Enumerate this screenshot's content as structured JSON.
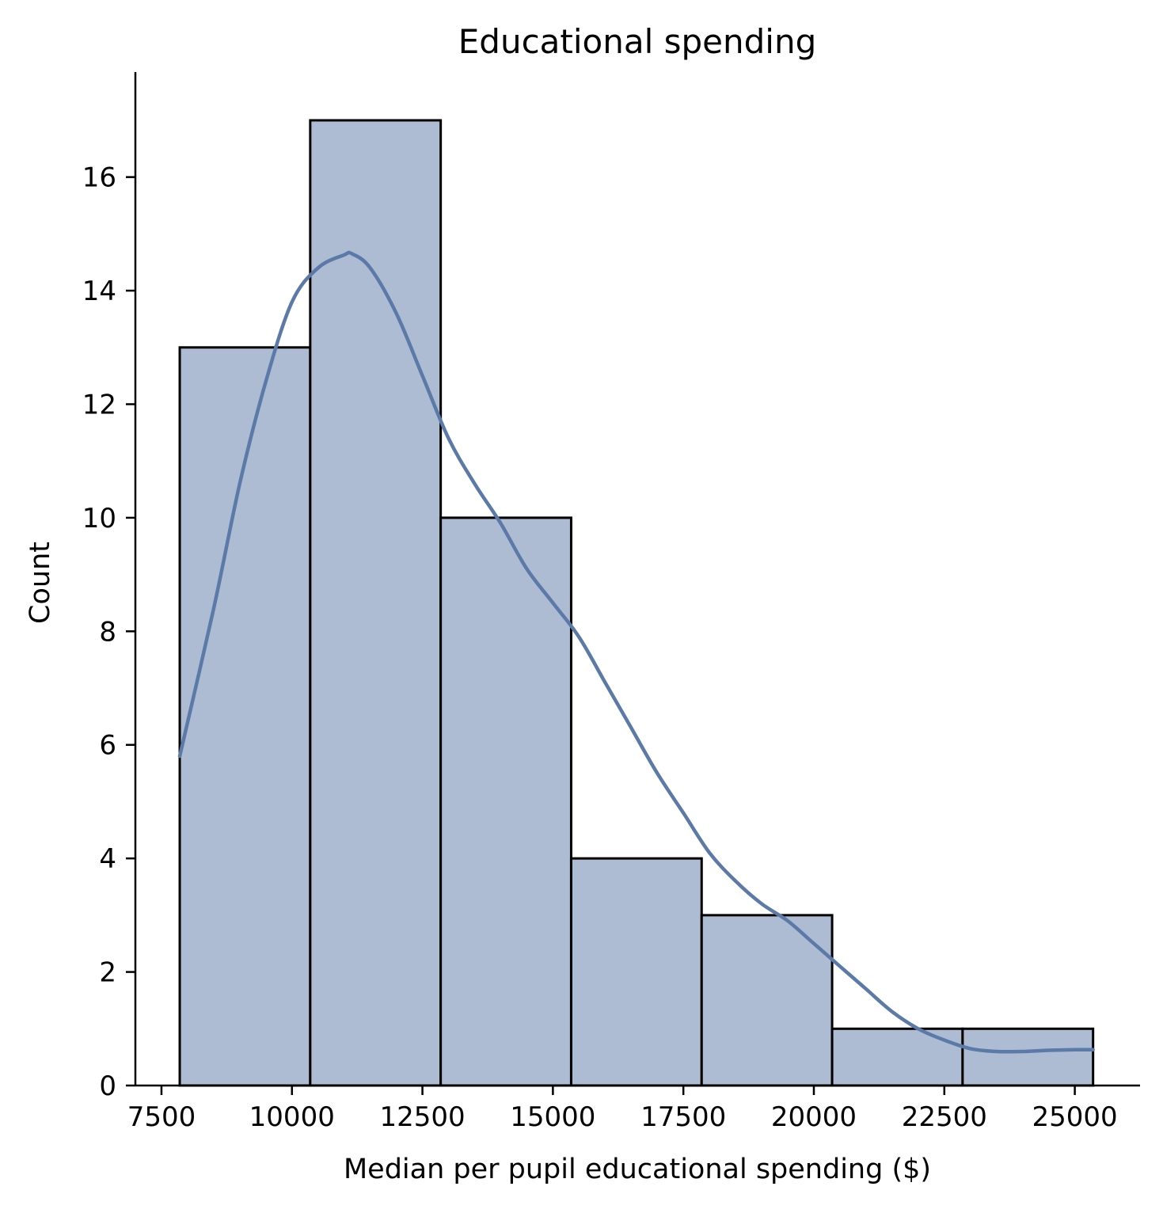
{
  "chart_data": {
    "type": "histogram",
    "title": "Educational spending",
    "xlabel": "Median per pupil educational spending ($)",
    "ylabel": "Count",
    "xlim": [
      7000,
      26250
    ],
    "ylim": [
      0,
      17.85
    ],
    "xticks": [
      7500,
      10000,
      12500,
      15000,
      17500,
      20000,
      22500,
      25000
    ],
    "yticks": [
      0,
      2,
      4,
      6,
      8,
      10,
      12,
      14,
      16
    ],
    "bins": [
      {
        "x0": 7850,
        "x1": 10350,
        "count": 13
      },
      {
        "x0": 10350,
        "x1": 12850,
        "count": 17
      },
      {
        "x0": 12850,
        "x1": 15350,
        "count": 10
      },
      {
        "x0": 15350,
        "x1": 17850,
        "count": 4
      },
      {
        "x0": 17850,
        "x1": 20350,
        "count": 3
      },
      {
        "x0": 20350,
        "x1": 22850,
        "count": 1
      },
      {
        "x0": 22850,
        "x1": 25350,
        "count": 1
      }
    ],
    "kde": {
      "x": [
        7850,
        8500,
        9000,
        9500,
        10000,
        10500,
        11000,
        11150,
        11500,
        12000,
        12500,
        13000,
        13500,
        14000,
        14500,
        15000,
        15500,
        16000,
        16500,
        17000,
        17500,
        18000,
        18500,
        19000,
        19500,
        20000,
        20500,
        21000,
        21500,
        22000,
        22500,
        23000,
        23500,
        24000,
        24500,
        25000,
        25350
      ],
      "y": [
        5.8,
        8.4,
        10.6,
        12.4,
        13.8,
        14.4,
        14.63,
        14.65,
        14.4,
        13.6,
        12.5,
        11.4,
        10.6,
        9.9,
        9.1,
        8.5,
        7.9,
        7.1,
        6.3,
        5.5,
        4.8,
        4.1,
        3.6,
        3.2,
        2.9,
        2.5,
        2.1,
        1.7,
        1.3,
        1.0,
        0.8,
        0.65,
        0.6,
        0.6,
        0.62,
        0.63,
        0.63
      ]
    },
    "grid": false,
    "legend": "none",
    "colors": {
      "bar_fill": "#aebcd3",
      "bar_edge": "#000000",
      "kde_line": "#5b7aa8",
      "axis": "#000000"
    }
  }
}
